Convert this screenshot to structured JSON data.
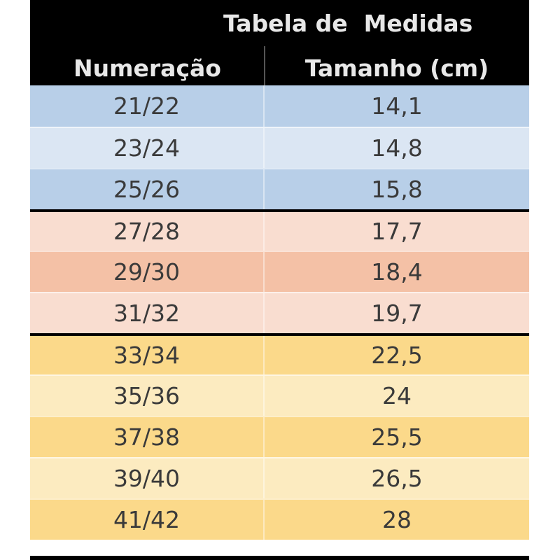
{
  "table": {
    "title": "Tabela de  Medidas",
    "headers": {
      "numeracao": "Numeração",
      "tamanho": "Tamanho (cm)"
    },
    "colors": {
      "blue_dark": "#b8cfe8",
      "blue_light": "#dbe6f3",
      "peach_light": "#f9ddd0",
      "peach_dark": "#f4c1a6",
      "yellow_dark": "#fbd98a",
      "yellow_light": "#fcebc0"
    },
    "rows": [
      {
        "num": "21/22",
        "size": "14,1",
        "color": "#b8cfe8",
        "group_start": false
      },
      {
        "num": "23/24",
        "size": "14,8",
        "color": "#dbe6f3",
        "group_start": false
      },
      {
        "num": "25/26",
        "size": "15,8",
        "color": "#b8cfe8",
        "group_start": false
      },
      {
        "num": "27/28",
        "size": "17,7",
        "color": "#f9ddd0",
        "group_start": true
      },
      {
        "num": "29/30",
        "size": "18,4",
        "color": "#f4c1a6",
        "group_start": false
      },
      {
        "num": "31/32",
        "size": "19,7",
        "color": "#f9ddd0",
        "group_start": false
      },
      {
        "num": "33/34",
        "size": "22,5",
        "color": "#fbd98a",
        "group_start": true
      },
      {
        "num": "35/36",
        "size": "24",
        "color": "#fcebc0",
        "group_start": false
      },
      {
        "num": "37/38",
        "size": "25,5",
        "color": "#fbd98a",
        "group_start": false
      },
      {
        "num": "39/40",
        "size": "26,5",
        "color": "#fcebc0",
        "group_start": false
      },
      {
        "num": "41/42",
        "size": "28",
        "color": "#fbd98a",
        "group_start": false
      }
    ]
  }
}
